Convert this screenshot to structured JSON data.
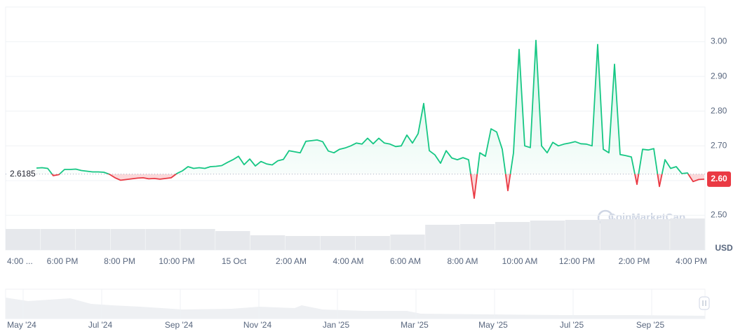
{
  "chart_data": {
    "type": "line",
    "xticks": [
      "4:00 ...",
      "6:00 PM",
      "8:00 PM",
      "10:00 PM",
      "15 Oct",
      "2:00 AM",
      "4:00 AM",
      "6:00 AM",
      "8:00 AM",
      "10:00 AM",
      "12:00 PM",
      "2:00 PM",
      "4:00 PM"
    ],
    "series": [
      {
        "name": "Price",
        "color_up": "#16c784",
        "color_down": "#ea3943",
        "values": [
          2.636,
          2.637,
          2.635,
          2.614,
          2.617,
          2.632,
          2.632,
          2.633,
          2.629,
          2.627,
          2.625,
          2.625,
          2.624,
          2.618,
          2.608,
          2.601,
          2.603,
          2.605,
          2.607,
          2.608,
          2.605,
          2.606,
          2.604,
          2.606,
          2.608,
          2.62,
          2.628,
          2.64,
          2.635,
          2.637,
          2.635,
          2.64,
          2.641,
          2.643,
          2.652,
          2.66,
          2.67,
          2.646,
          2.662,
          2.642,
          2.655,
          2.648,
          2.645,
          2.657,
          2.661,
          2.686,
          2.683,
          2.68,
          2.713,
          2.715,
          2.717,
          2.712,
          2.685,
          2.68,
          2.69,
          2.694,
          2.7,
          2.708,
          2.705,
          2.722,
          2.706,
          2.722,
          2.708,
          2.705,
          2.698,
          2.7,
          2.731,
          2.708,
          2.735,
          2.822,
          2.686,
          2.674,
          2.65,
          2.686,
          2.665,
          2.66,
          2.666,
          2.66,
          2.549,
          2.68,
          2.67,
          2.749,
          2.74,
          2.69,
          2.571,
          2.68,
          2.978,
          2.7,
          2.695,
          3.004,
          2.7,
          2.68,
          2.71,
          2.7,
          2.705,
          2.708,
          2.712,
          2.706,
          2.705,
          2.7,
          2.992,
          2.69,
          2.68,
          2.935,
          2.675,
          2.672,
          2.668,
          2.589,
          2.69,
          2.688,
          2.692,
          2.583,
          2.66,
          2.635,
          2.64,
          2.62,
          2.622,
          2.597,
          2.603,
          2.604
        ]
      }
    ],
    "baseline": 2.6185,
    "price_tag": "2.60",
    "ylim": [
      2.4,
      3.1
    ],
    "yticks": [
      {
        "value": 2.5,
        "label": "2.50"
      },
      {
        "value": 2.6,
        "label": "2.60"
      },
      {
        "value": 2.7,
        "label": "2.70"
      },
      {
        "value": 2.8,
        "label": "2.80"
      },
      {
        "value": 2.9,
        "label": "2.90"
      },
      {
        "value": 3.0,
        "label": "3.00"
      }
    ],
    "y_unit": "USD",
    "volume": {
      "color": "#e6e8ec",
      "ylim": [
        0,
        100
      ],
      "values": [
        30,
        30,
        30,
        30,
        30,
        30,
        27,
        21,
        20,
        20,
        20,
        22,
        36,
        37,
        40,
        42,
        43,
        44,
        44,
        45
      ]
    },
    "watermark": "CoinMarketCap",
    "navigator": {
      "labels": [
        "May '24",
        "Jul '24",
        "Sep '24",
        "Nov '24",
        "Jan '25",
        "Mar '25",
        "May '25",
        "Jul '25",
        "Sep '25"
      ]
    },
    "grid": true
  }
}
